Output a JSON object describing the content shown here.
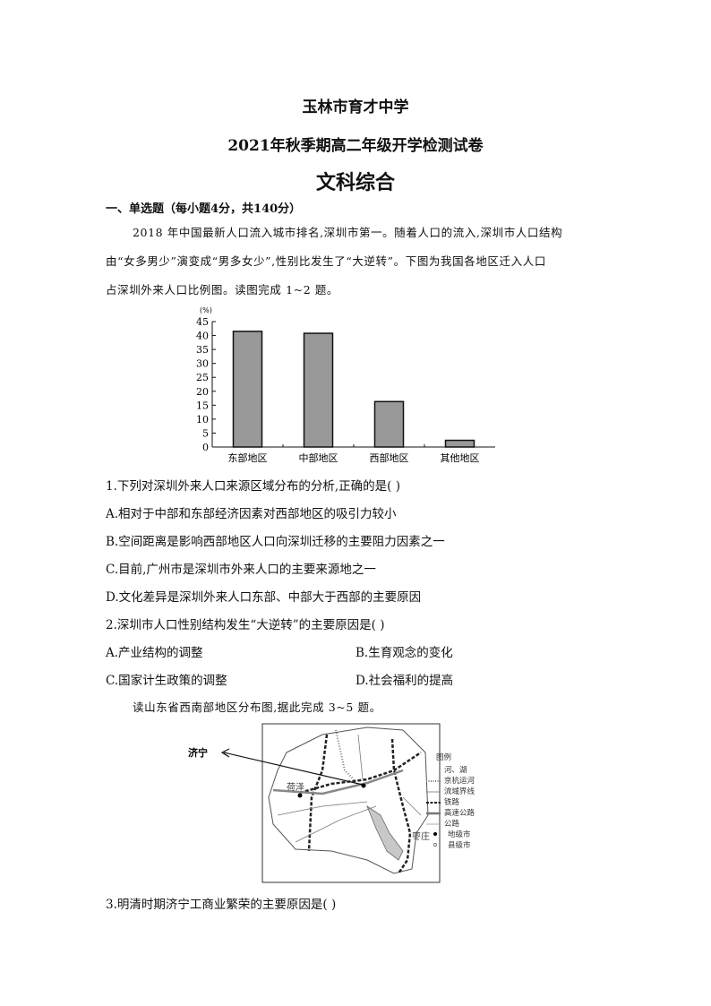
{
  "header": {
    "school": "玉林市育才中学",
    "exam": "2021年秋季期高二年级开学检测试卷",
    "subject": "文科综合"
  },
  "section": "一、单选题（每小题4分，共140分）",
  "passage1": [
    "2018 年中国最新人口流入城市排名,深圳市第一。随着人口的流入,深圳市人口结构",
    "由“女多男少”演变成“男多女少”,性别比发生了“大逆转”。下图为我国各地区迁入人口",
    "占深圳外来人口比例图。读图完成 1~2 题。"
  ],
  "chart_data": {
    "type": "bar",
    "ylabel": "(%)",
    "categories": [
      "东部地区",
      "中部地区",
      "西部地区",
      "其他地区"
    ],
    "values": [
      41.5,
      40.8,
      16.3,
      2.4
    ],
    "ylim": [
      0,
      45
    ],
    "yticks": [
      0,
      5,
      10,
      15,
      20,
      25,
      30,
      35,
      40,
      45
    ],
    "bar_color": "#999999"
  },
  "questions": [
    {
      "stem": "1.下列对深圳外来人口来源区域分布的分析,正确的是(   )",
      "options": [
        "A.相对于中部和东部经济因素对西部地区的吸引力较小",
        "B.空间距离是影响西部地区人口向深圳迁移的主要阻力因素之一",
        "C.目前,广州市是深圳市外来人口的主要来源地之一",
        "D.文化差异是深圳外来人口东部、中部大于西部的主要原因"
      ]
    },
    {
      "stem": "2.深圳市人口性别结构发生“大逆转”的主要原因是(   )",
      "options": [
        "A.产业结构的调整",
        "B.生育观念的变化",
        "C.国家计生政策的调整",
        "D.社会福利的提高"
      ]
    }
  ],
  "passage2": "读山东省西南部地区分布图,据此完成 3~5 题。",
  "map": {
    "callout": "济宁",
    "labels": [
      "荷泽",
      "枣庄"
    ],
    "legend_title": "图例",
    "legend": [
      "河、湖",
      "京杭运河",
      "流域界线",
      "铁路",
      "高速公路",
      "公路",
      "地级市",
      "县级市"
    ]
  },
  "question3": "3.明清时期济宁工商业繁荣的主要原因是(   )"
}
